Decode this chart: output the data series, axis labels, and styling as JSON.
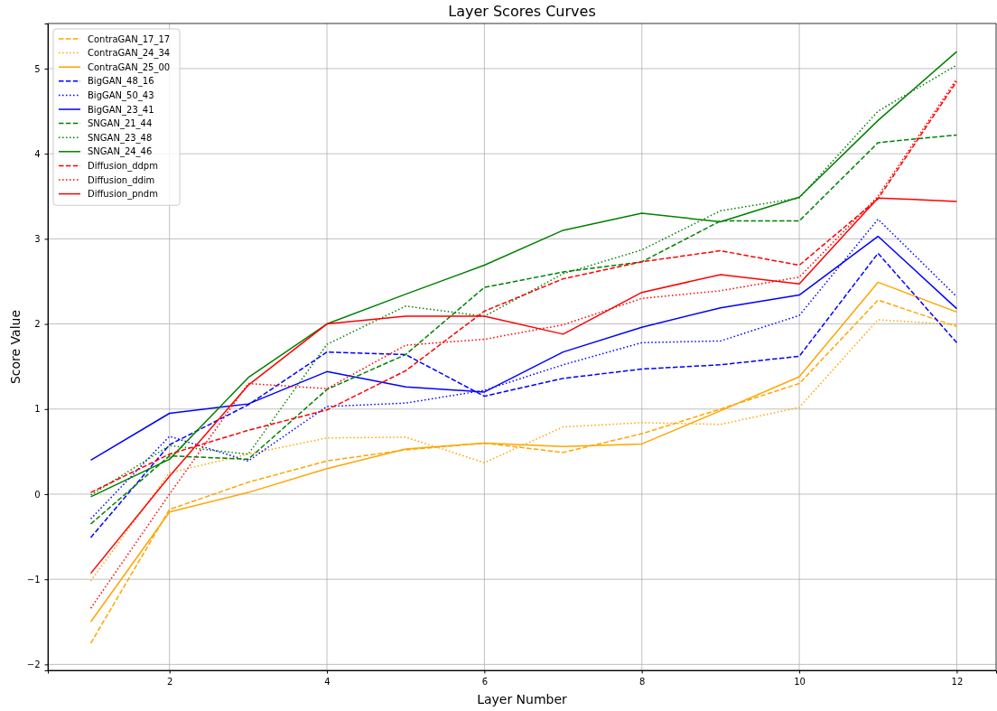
{
  "chart_data": {
    "type": "line",
    "title": "Layer Scores Curves",
    "xlabel": "Layer Number",
    "ylabel": "Score Value",
    "x": [
      1,
      2,
      3,
      4,
      5,
      6,
      7,
      8,
      9,
      10,
      11,
      12
    ],
    "xlim": [
      0.455,
      12.5
    ],
    "xticks": [
      2,
      4,
      6,
      8,
      10,
      12
    ],
    "ylim": [
      -2.07,
      5.53
    ],
    "yticks": [
      {
        "value": -2,
        "label": "−2"
      },
      {
        "value": -1,
        "label": "−1"
      },
      0,
      1,
      2,
      3,
      4,
      5
    ],
    "grid": true,
    "legend": "top left",
    "marker": "none",
    "series": [
      {
        "name": "ContraGAN_17_17",
        "color": "#ffa500",
        "line_style": "dashed",
        "values": [
          -1.75,
          -0.18,
          0.14,
          0.39,
          0.52,
          0.6,
          0.49,
          0.71,
          1.0,
          1.3,
          2.28,
          1.97
        ]
      },
      {
        "name": "ContraGAN_24_34",
        "color": "#ffa500",
        "line_style": "dotted",
        "values": [
          -1.02,
          0.25,
          0.47,
          0.66,
          0.67,
          0.37,
          0.79,
          0.84,
          0.82,
          1.02,
          2.05,
          1.99
        ]
      },
      {
        "name": "ContraGAN_25_00",
        "color": "#ffa500",
        "line_style": "solid",
        "values": [
          -1.5,
          -0.21,
          0.02,
          0.3,
          0.53,
          0.6,
          0.56,
          0.59,
          0.98,
          1.38,
          2.49,
          2.14
        ]
      },
      {
        "name": "BigGAN_48_16",
        "color": "#0000ff",
        "line_style": "dashed",
        "values": [
          -0.51,
          0.58,
          1.05,
          1.67,
          1.64,
          1.15,
          1.36,
          1.47,
          1.52,
          1.62,
          2.83,
          1.78
        ]
      },
      {
        "name": "BigGAN_50_43",
        "color": "#0000ff",
        "line_style": "dotted",
        "values": [
          -0.29,
          0.68,
          0.39,
          1.03,
          1.07,
          1.22,
          1.52,
          1.78,
          1.8,
          2.1,
          3.23,
          2.32
        ]
      },
      {
        "name": "BigGAN_23_41",
        "color": "#0000ff",
        "line_style": "solid",
        "values": [
          0.4,
          0.95,
          1.06,
          1.44,
          1.26,
          1.2,
          1.67,
          1.96,
          2.19,
          2.34,
          3.03,
          2.18
        ]
      },
      {
        "name": "SNGAN_21_44",
        "color": "#008000",
        "line_style": "dashed",
        "values": [
          -0.35,
          0.45,
          0.41,
          1.23,
          1.64,
          2.43,
          2.61,
          2.73,
          3.21,
          3.21,
          4.13,
          4.22
        ]
      },
      {
        "name": "SNGAN_23_48",
        "color": "#008000",
        "line_style": "dotted",
        "values": [
          -0.01,
          0.57,
          0.47,
          1.76,
          2.21,
          2.09,
          2.59,
          2.87,
          3.33,
          3.48,
          4.5,
          5.04
        ]
      },
      {
        "name": "SNGAN_24_46",
        "color": "#008000",
        "line_style": "solid",
        "values": [
          -0.03,
          0.41,
          1.37,
          2.0,
          2.35,
          2.69,
          3.1,
          3.3,
          3.2,
          3.49,
          4.39,
          5.2
        ]
      },
      {
        "name": "Diffusion_ddpm",
        "color": "#ff0000",
        "line_style": "dashed",
        "values": [
          0.02,
          0.47,
          0.75,
          0.99,
          1.45,
          2.15,
          2.53,
          2.73,
          2.86,
          2.69,
          3.47,
          4.85
        ]
      },
      {
        "name": "Diffusion_ddim",
        "color": "#ff0000",
        "line_style": "dotted",
        "values": [
          -1.34,
          0.0,
          1.3,
          1.24,
          1.75,
          1.82,
          1.99,
          2.3,
          2.39,
          2.55,
          3.5,
          4.88
        ]
      },
      {
        "name": "Diffusion_pndm",
        "color": "#ff0000",
        "line_style": "solid",
        "values": [
          -0.93,
          0.21,
          1.28,
          2.0,
          2.09,
          2.09,
          1.88,
          2.37,
          2.58,
          2.47,
          3.48,
          3.44
        ]
      }
    ]
  }
}
